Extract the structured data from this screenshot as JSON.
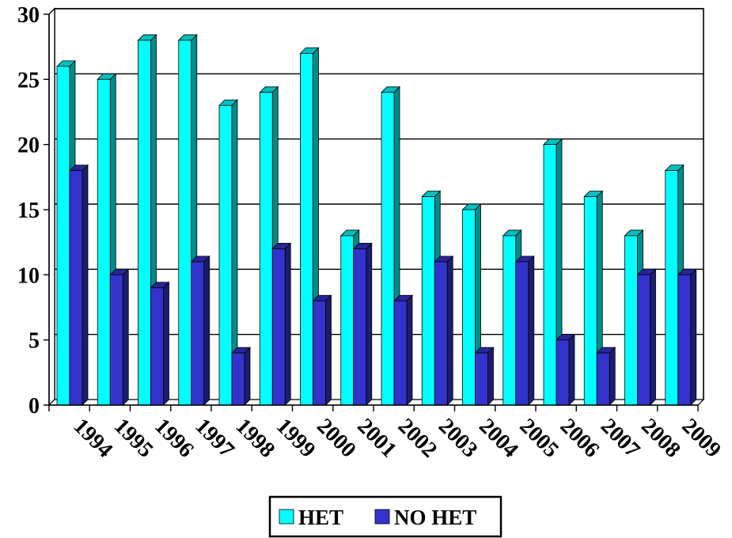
{
  "chart_data": {
    "type": "bar",
    "categories": [
      "1994",
      "1995",
      "1996",
      "1997",
      "1998",
      "1999",
      "2000",
      "2001",
      "2002",
      "2003",
      "2004",
      "2005",
      "2006",
      "2007",
      "2008",
      "2009"
    ],
    "series": [
      {
        "name": "HET",
        "color": "#00ffff",
        "values": [
          26,
          25,
          28,
          28,
          23,
          24,
          27,
          13,
          24,
          16,
          15,
          13,
          20,
          16,
          13,
          18
        ]
      },
      {
        "name": "NO HET",
        "color": "#3333cc",
        "values": [
          18,
          10,
          9,
          11,
          4,
          12,
          8,
          12,
          8,
          11,
          4,
          11,
          5,
          4,
          10,
          10
        ]
      }
    ],
    "ylim": [
      0,
      30
    ],
    "yticks": [
      0,
      5,
      10,
      15,
      20,
      25,
      30
    ],
    "grid": true,
    "legend_position": "bottom-center",
    "title": "",
    "xlabel": "",
    "ylabel": ""
  }
}
